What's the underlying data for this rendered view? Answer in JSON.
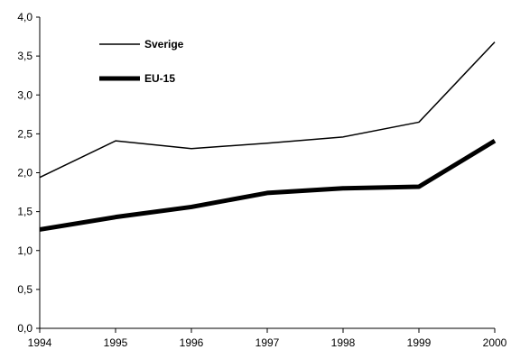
{
  "chart_data": {
    "type": "line",
    "title": "",
    "xlabel": "",
    "ylabel": "",
    "x": [
      "1994",
      "1995",
      "1996",
      "1997",
      "1998",
      "1999",
      "2000"
    ],
    "y_ticks": [
      "0,0",
      "0,5",
      "1,0",
      "1,5",
      "2,0",
      "2,5",
      "3,0",
      "3,5",
      "4,0"
    ],
    "ylim": [
      0,
      4
    ],
    "grid": false,
    "legend_position": "top-left",
    "series": [
      {
        "name": "Sverige",
        "values": [
          1.94,
          2.41,
          2.31,
          2.38,
          2.46,
          2.65,
          3.68
        ],
        "color": "#000000",
        "style": "thin"
      },
      {
        "name": "EU-15",
        "values": [
          1.27,
          1.43,
          1.56,
          1.74,
          1.8,
          1.82,
          2.41
        ],
        "color": "#000000",
        "style": "thick"
      }
    ]
  }
}
